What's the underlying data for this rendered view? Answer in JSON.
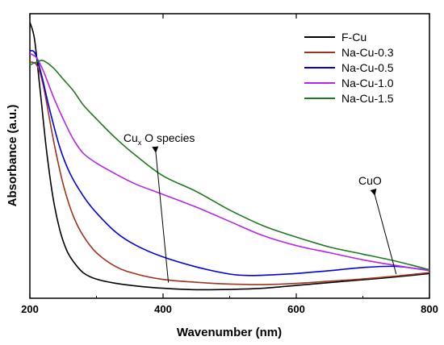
{
  "chart_data": {
    "type": "line",
    "title": "",
    "xlabel": "Wavenumber (nm)",
    "ylabel": "Absorbance (a.u.)",
    "xlim": [
      200,
      800
    ],
    "x_ticks": [
      "200",
      "400",
      "600",
      "800"
    ],
    "y_ticks_labeled": false,
    "legend_position": "top-right",
    "series": [
      {
        "name": "F-Cu",
        "color": "#000000",
        "points": [
          [
            200,
            0.97
          ],
          [
            207,
            0.91
          ],
          [
            215,
            0.74
          ],
          [
            225,
            0.52
          ],
          [
            235,
            0.35
          ],
          [
            245,
            0.24
          ],
          [
            255,
            0.17
          ],
          [
            265,
            0.13
          ],
          [
            280,
            0.09
          ],
          [
            300,
            0.067
          ],
          [
            330,
            0.052
          ],
          [
            360,
            0.043
          ],
          [
            400,
            0.035
          ],
          [
            450,
            0.03
          ],
          [
            500,
            0.031
          ],
          [
            550,
            0.035
          ],
          [
            600,
            0.045
          ],
          [
            650,
            0.055
          ],
          [
            700,
            0.065
          ],
          [
            750,
            0.075
          ],
          [
            800,
            0.087
          ]
        ]
      },
      {
        "name": "Na-Cu-0.3",
        "color": "#a0341c",
        "points": [
          [
            200,
            0.83
          ],
          [
            210,
            0.82
          ],
          [
            220,
            0.75
          ],
          [
            235,
            0.56
          ],
          [
            250,
            0.4
          ],
          [
            265,
            0.29
          ],
          [
            280,
            0.22
          ],
          [
            300,
            0.16
          ],
          [
            330,
            0.11
          ],
          [
            360,
            0.085
          ],
          [
            400,
            0.066
          ],
          [
            450,
            0.056
          ],
          [
            500,
            0.05
          ],
          [
            550,
            0.048
          ],
          [
            600,
            0.052
          ],
          [
            650,
            0.06
          ],
          [
            700,
            0.068
          ],
          [
            750,
            0.078
          ],
          [
            800,
            0.09
          ]
        ]
      },
      {
        "name": "Na-Cu-0.5",
        "color": "#0000e6",
        "points": [
          [
            200,
            0.87
          ],
          [
            208,
            0.86
          ],
          [
            218,
            0.78
          ],
          [
            230,
            0.66
          ],
          [
            245,
            0.53
          ],
          [
            260,
            0.44
          ],
          [
            280,
            0.36
          ],
          [
            300,
            0.3
          ],
          [
            330,
            0.23
          ],
          [
            360,
            0.185
          ],
          [
            400,
            0.145
          ],
          [
            450,
            0.11
          ],
          [
            500,
            0.085
          ],
          [
            530,
            0.08
          ],
          [
            560,
            0.082
          ],
          [
            600,
            0.087
          ],
          [
            650,
            0.097
          ],
          [
            700,
            0.108
          ],
          [
            750,
            0.112
          ],
          [
            800,
            0.098
          ]
        ]
      },
      {
        "name": "Na-Cu-1.0",
        "color": "#b426ee",
        "points": [
          [
            200,
            0.86
          ],
          [
            210,
            0.845
          ],
          [
            220,
            0.8
          ],
          [
            235,
            0.71
          ],
          [
            250,
            0.63
          ],
          [
            265,
            0.56
          ],
          [
            280,
            0.51
          ],
          [
            300,
            0.475
          ],
          [
            330,
            0.435
          ],
          [
            360,
            0.4
          ],
          [
            400,
            0.365
          ],
          [
            450,
            0.32
          ],
          [
            500,
            0.27
          ],
          [
            550,
            0.22
          ],
          [
            600,
            0.185
          ],
          [
            650,
            0.16
          ],
          [
            700,
            0.135
          ],
          [
            750,
            0.115
          ],
          [
            800,
            0.097
          ]
        ]
      },
      {
        "name": "Na-Cu-1.5",
        "color": "#1e7a1e",
        "points": [
          [
            200,
            0.82
          ],
          [
            210,
            0.83
          ],
          [
            220,
            0.835
          ],
          [
            235,
            0.81
          ],
          [
            250,
            0.77
          ],
          [
            265,
            0.73
          ],
          [
            280,
            0.68
          ],
          [
            300,
            0.63
          ],
          [
            330,
            0.56
          ],
          [
            360,
            0.5
          ],
          [
            400,
            0.43
          ],
          [
            450,
            0.375
          ],
          [
            500,
            0.31
          ],
          [
            550,
            0.255
          ],
          [
            600,
            0.215
          ],
          [
            650,
            0.18
          ],
          [
            700,
            0.155
          ],
          [
            750,
            0.13
          ],
          [
            800,
            0.1
          ]
        ]
      }
    ],
    "annotations": [
      {
        "label": "Cu",
        "sub": "x",
        "rest": "O species",
        "text_at": [
          395,
          0.55
        ],
        "arrow_tip": [
          408,
          0.055
        ]
      },
      {
        "label": "CuO",
        "text_at": [
          720,
          0.4
        ],
        "arrow_tip": [
          750,
          0.085
        ]
      }
    ]
  }
}
